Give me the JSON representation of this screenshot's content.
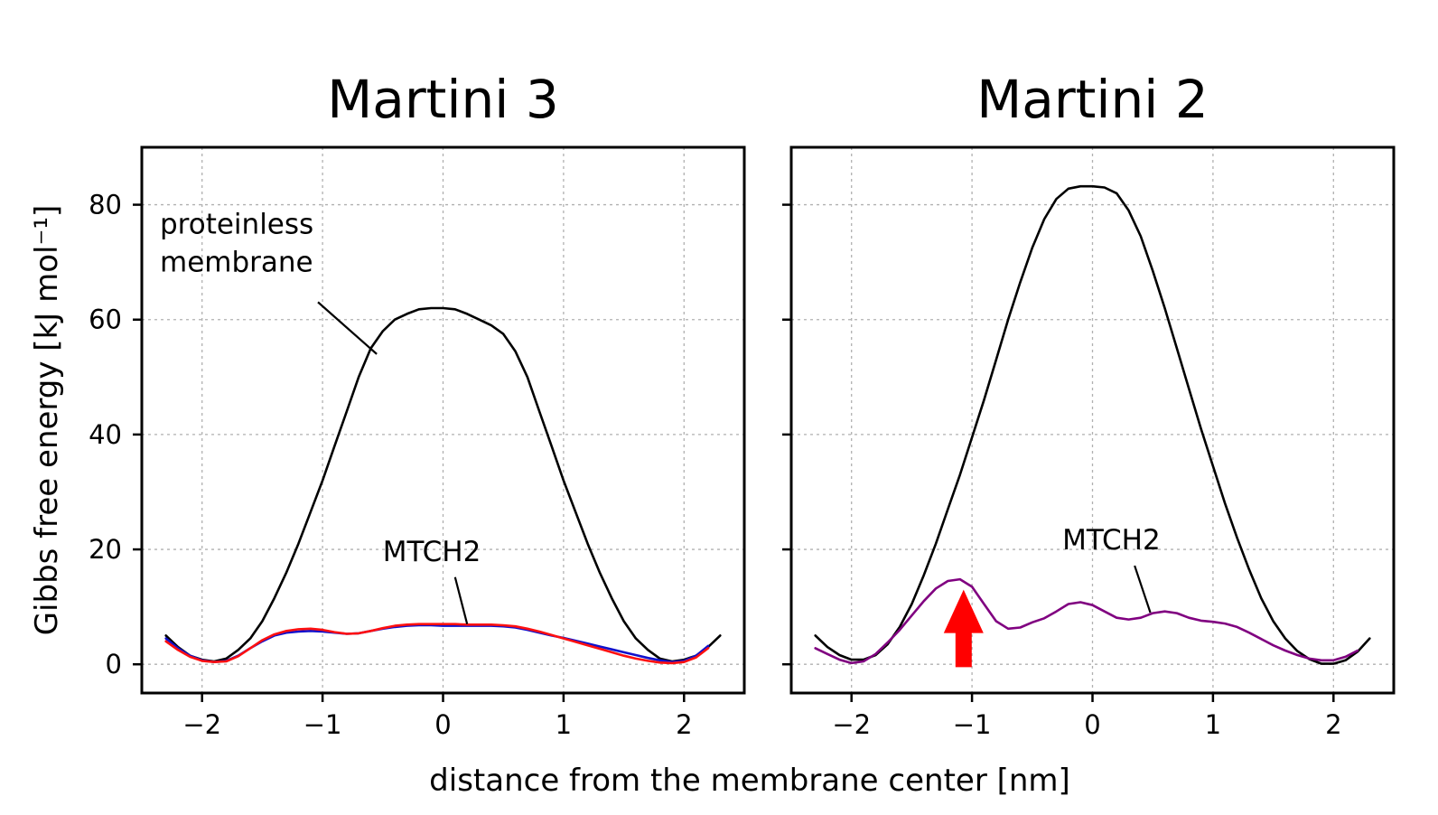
{
  "figure": {
    "xlabel": "distance from the membrane center [nm]",
    "ylabel": "Gibbs free energy [kJ mol⁻¹]"
  },
  "chart_data": [
    {
      "type": "line",
      "title": "Martini 3",
      "xlim": [
        -2.5,
        2.5
      ],
      "ylim": [
        -5,
        90
      ],
      "xticks": [
        -2,
        -1,
        0,
        1,
        2
      ],
      "xtick_labels": [
        "−2",
        "−1",
        "0",
        "1",
        "2"
      ],
      "yticks": [
        0,
        20,
        40,
        60,
        80
      ],
      "ytick_labels": [
        "0",
        "20",
        "40",
        "60",
        "80"
      ],
      "grid": true,
      "series": [
        {
          "color": "#000000",
          "x": [
            -2.3,
            -2.2,
            -2.1,
            -2.0,
            -1.9,
            -1.8,
            -1.7,
            -1.6,
            -1.5,
            -1.4,
            -1.3,
            -1.2,
            -1.1,
            -1.0,
            -0.9,
            -0.8,
            -0.7,
            -0.6,
            -0.5,
            -0.4,
            -0.3,
            -0.2,
            -0.1,
            0.0,
            0.1,
            0.2,
            0.3,
            0.4,
            0.5,
            0.6,
            0.7,
            0.8,
            0.9,
            1.0,
            1.1,
            1.2,
            1.3,
            1.4,
            1.5,
            1.6,
            1.7,
            1.8,
            1.9,
            2.0,
            2.1,
            2.2,
            2.3
          ],
          "y": [
            5,
            3,
            1.5,
            0.8,
            0.5,
            1,
            2.5,
            4.5,
            7.5,
            11.5,
            16,
            21,
            26.5,
            32,
            38,
            44,
            50,
            55,
            58,
            60,
            61,
            61.8,
            62,
            62,
            61.8,
            61,
            60,
            59,
            57.5,
            54.5,
            50,
            44,
            38,
            32,
            26.5,
            21,
            16,
            11.5,
            7.5,
            4.5,
            2.5,
            1,
            0.5,
            0.8,
            1.5,
            3,
            5
          ]
        },
        {
          "color": "#1010cc",
          "x": [
            -2.3,
            -2.2,
            -2.1,
            -2.0,
            -1.9,
            -1.8,
            -1.7,
            -1.6,
            -1.5,
            -1.4,
            -1.3,
            -1.2,
            -1.1,
            -1.0,
            -0.9,
            -0.8,
            -0.7,
            -0.6,
            -0.5,
            -0.4,
            -0.3,
            -0.2,
            -0.1,
            0.0,
            0.1,
            0.2,
            0.3,
            0.4,
            0.5,
            0.6,
            0.7,
            0.8,
            0.9,
            1.0,
            1.1,
            1.2,
            1.3,
            1.4,
            1.5,
            1.6,
            1.7,
            1.8,
            1.9,
            2.0,
            2.1,
            2.2
          ],
          "y": [
            4.5,
            2.8,
            1.5,
            0.7,
            0.4,
            0.6,
            1.5,
            2.8,
            4,
            5,
            5.5,
            5.7,
            5.8,
            5.7,
            5.5,
            5.3,
            5.4,
            5.8,
            6.2,
            6.5,
            6.7,
            6.8,
            6.8,
            6.7,
            6.7,
            6.7,
            6.7,
            6.7,
            6.6,
            6.4,
            6,
            5.5,
            5,
            4.6,
            4.1,
            3.6,
            3.1,
            2.6,
            2.1,
            1.6,
            1.1,
            0.7,
            0.4,
            0.6,
            1.5,
            3.2
          ]
        },
        {
          "color": "#ff1010",
          "x": [
            -2.3,
            -2.2,
            -2.1,
            -2.0,
            -1.9,
            -1.8,
            -1.7,
            -1.6,
            -1.5,
            -1.4,
            -1.3,
            -1.2,
            -1.1,
            -1.0,
            -0.9,
            -0.8,
            -0.7,
            -0.6,
            -0.5,
            -0.4,
            -0.3,
            -0.2,
            -0.1,
            0.0,
            0.1,
            0.2,
            0.3,
            0.4,
            0.5,
            0.6,
            0.7,
            0.8,
            0.9,
            1.0,
            1.1,
            1.2,
            1.3,
            1.4,
            1.5,
            1.6,
            1.7,
            1.8,
            1.9,
            2.0,
            2.1,
            2.2
          ],
          "y": [
            4,
            2.5,
            1.3,
            0.6,
            0.4,
            0.5,
            1.4,
            2.8,
            4.2,
            5.2,
            5.8,
            6.1,
            6.2,
            6,
            5.6,
            5.3,
            5.4,
            5.8,
            6.3,
            6.7,
            6.9,
            7,
            7,
            7,
            7,
            6.9,
            6.9,
            6.9,
            6.8,
            6.6,
            6.2,
            5.7,
            5.1,
            4.5,
            3.9,
            3.3,
            2.7,
            2.1,
            1.5,
            1.0,
            0.6,
            0.3,
            0.2,
            0.4,
            1.2,
            2.8
          ]
        }
      ],
      "annotations": [
        {
          "lines": [
            "proteinless",
            "membrane"
          ],
          "x": -2.35,
          "y": 75,
          "arrow_to": [
            -0.55,
            54
          ]
        },
        {
          "lines": [
            "MTCH2"
          ],
          "x": -0.5,
          "y": 18,
          "arrow_to": [
            0.2,
            7
          ]
        }
      ]
    },
    {
      "type": "line",
      "title": "Martini 2",
      "xlim": [
        -2.5,
        2.5
      ],
      "ylim": [
        -5,
        90
      ],
      "xticks": [
        -2,
        -1,
        0,
        1,
        2
      ],
      "xtick_labels": [
        "−2",
        "−1",
        "0",
        "1",
        "2"
      ],
      "yticks": [
        0,
        20,
        40,
        60,
        80
      ],
      "ytick_labels": [],
      "grid": true,
      "series": [
        {
          "color": "#000000",
          "x": [
            -2.3,
            -2.2,
            -2.1,
            -2.0,
            -1.9,
            -1.8,
            -1.7,
            -1.6,
            -1.5,
            -1.4,
            -1.3,
            -1.2,
            -1.1,
            -1.0,
            -0.9,
            -0.8,
            -0.7,
            -0.6,
            -0.5,
            -0.4,
            -0.3,
            -0.2,
            -0.1,
            0.0,
            0.1,
            0.2,
            0.3,
            0.4,
            0.5,
            0.6,
            0.7,
            0.8,
            0.9,
            1.0,
            1.1,
            1.2,
            1.3,
            1.4,
            1.5,
            1.6,
            1.7,
            1.8,
            1.9,
            2.0,
            2.1,
            2.2,
            2.3
          ],
          "y": [
            5,
            3,
            1.6,
            0.8,
            0.8,
            1.6,
            3.5,
            6.5,
            10.5,
            15.5,
            21,
            27,
            33,
            39.5,
            46,
            53,
            60,
            66.5,
            72.5,
            77.5,
            81,
            82.8,
            83.2,
            83.2,
            83,
            82,
            79,
            74.5,
            68.5,
            62,
            55,
            48,
            41,
            34.5,
            28,
            22,
            16.5,
            11.5,
            7.5,
            4.5,
            2.3,
            0.9,
            0.1,
            0.1,
            0.7,
            2.2,
            4.5
          ]
        },
        {
          "color": "#800080",
          "x": [
            -2.3,
            -2.2,
            -2.1,
            -2.0,
            -1.9,
            -1.8,
            -1.7,
            -1.6,
            -1.5,
            -1.4,
            -1.3,
            -1.2,
            -1.1,
            -1.0,
            -0.9,
            -0.8,
            -0.7,
            -0.6,
            -0.5,
            -0.4,
            -0.3,
            -0.2,
            -0.1,
            0.0,
            0.1,
            0.2,
            0.3,
            0.4,
            0.5,
            0.6,
            0.7,
            0.8,
            0.9,
            1.0,
            1.1,
            1.2,
            1.3,
            1.4,
            1.5,
            1.6,
            1.7,
            1.8,
            1.9,
            2.0,
            2.1,
            2.2
          ],
          "y": [
            2.8,
            1.8,
            0.8,
            0.2,
            0.5,
            1.8,
            3.8,
            6,
            8.5,
            11,
            13.2,
            14.5,
            14.8,
            13.5,
            10.5,
            7.5,
            6.2,
            6.4,
            7.3,
            8,
            9.2,
            10.5,
            10.8,
            10.3,
            9.2,
            8.1,
            7.8,
            8.1,
            8.9,
            9.2,
            8.9,
            8.1,
            7.6,
            7.4,
            7.1,
            6.5,
            5.5,
            4.4,
            3.3,
            2.4,
            1.6,
            1.0,
            0.7,
            0.7,
            1.3,
            2.4
          ]
        }
      ],
      "annotations": [
        {
          "lines": [
            "MTCH2"
          ],
          "x": -0.25,
          "y": 20,
          "arrow_to": [
            0.48,
            9
          ]
        }
      ],
      "highlight_arrow": {
        "color": "#ff0000",
        "x": -1.07,
        "y_tail": -0.5,
        "y_head": 13
      }
    }
  ]
}
